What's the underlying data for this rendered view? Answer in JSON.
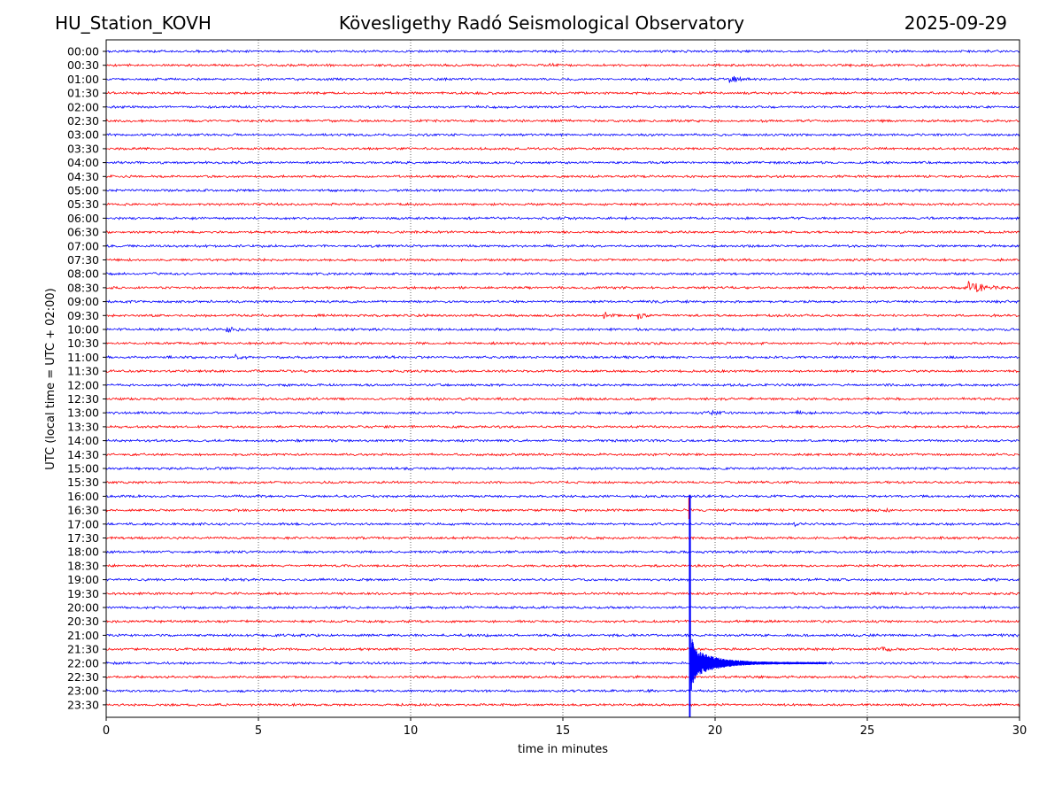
{
  "header": {
    "station": "HU_Station_KOVH",
    "title": "Kövesligethy Radó Seismological Observatory",
    "date": "2025-09-29"
  },
  "chart_data": {
    "type": "line",
    "subtype": "helicorder",
    "xlabel": "time in minutes",
    "ylabel": "UTC (local time = UTC + 02:00)",
    "xlim": [
      0,
      30
    ],
    "xticks": [
      0,
      5,
      10,
      15,
      20,
      25,
      30
    ],
    "grid_x": true,
    "row_colors": [
      "#0000ff",
      "#ff0000"
    ],
    "rows": [
      "00:00",
      "00:30",
      "01:00",
      "01:30",
      "02:00",
      "02:30",
      "03:00",
      "03:30",
      "04:00",
      "04:30",
      "05:00",
      "05:30",
      "06:00",
      "06:30",
      "07:00",
      "07:30",
      "08:00",
      "08:30",
      "09:00",
      "09:30",
      "10:00",
      "10:30",
      "11:00",
      "11:30",
      "12:00",
      "12:30",
      "13:00",
      "13:30",
      "14:00",
      "14:30",
      "15:00",
      "15:30",
      "16:00",
      "16:30",
      "17:00",
      "17:30",
      "18:00",
      "18:30",
      "19:00",
      "19:30",
      "20:00",
      "20:30",
      "21:00",
      "21:30",
      "22:00",
      "22:30",
      "23:00",
      "23:30"
    ],
    "events": [
      {
        "row": "00:30",
        "minute": 14.6,
        "amplitude": 1.2,
        "duration": 0.3
      },
      {
        "row": "01:00",
        "minute": 20.45,
        "amplitude": 4.5,
        "duration": 0.8
      },
      {
        "row": "06:00",
        "minute": 14.8,
        "amplitude": 1.3,
        "duration": 0.5
      },
      {
        "row": "07:00",
        "minute": 0.1,
        "amplitude": 1.2,
        "duration": 0.4
      },
      {
        "row": "08:30",
        "minute": 5.4,
        "amplitude": 1.4,
        "duration": 0.4
      },
      {
        "row": "08:30",
        "minute": 28.35,
        "amplitude": 7,
        "duration": 1.2
      },
      {
        "row": "09:00",
        "minute": 18.0,
        "amplitude": 1.3,
        "duration": 0.6
      },
      {
        "row": "09:30",
        "minute": 16.4,
        "amplitude": 2.8,
        "duration": 0.5
      },
      {
        "row": "09:30",
        "minute": 17.5,
        "amplitude": 3.2,
        "duration": 0.4
      },
      {
        "row": "10:00",
        "minute": 4.0,
        "amplitude": 2.5,
        "duration": 0.7
      },
      {
        "row": "11:00",
        "minute": 4.3,
        "amplitude": 2.2,
        "duration": 0.4
      },
      {
        "row": "13:00",
        "minute": 19.8,
        "amplitude": 2.2,
        "duration": 0.8
      },
      {
        "row": "13:00",
        "minute": 22.7,
        "amplitude": 1.5,
        "duration": 0.6
      },
      {
        "row": "16:30",
        "minute": 25.6,
        "amplitude": 1.8,
        "duration": 0.4
      },
      {
        "row": "17:00",
        "minute": 22.6,
        "amplitude": 1.5,
        "duration": 0.5
      },
      {
        "row": "21:30",
        "minute": 25.5,
        "amplitude": 2.2,
        "duration": 0.8
      },
      {
        "row": "22:00",
        "minute": 19.15,
        "amplitude": 190,
        "duration": 4.5,
        "main_quake": true
      }
    ]
  }
}
